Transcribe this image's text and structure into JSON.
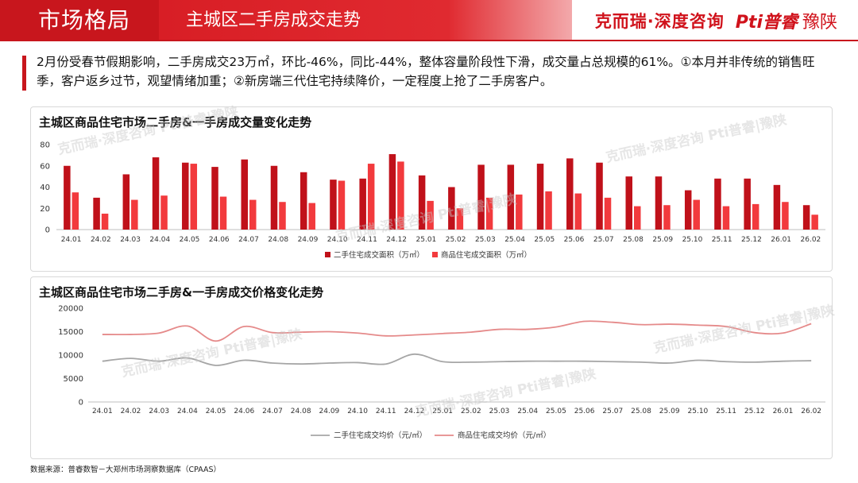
{
  "header": {
    "section_title": "市场格局",
    "page_title": "主城区二手房成交走势",
    "brand_left": "克而瑞·深度咨询",
    "brand_mark": "Pti普睿",
    "brand_right": "豫陕"
  },
  "summary": {
    "text": "2月份受春节假期影响，二手房成交23万㎡，环比-46%，同比-44%，整体容量阶段性下滑，成交量占总规模的61%。①本月并非传统的销售旺季，客户返乡过节，观望情绪加重；②新房端三代住宅持续降价，一定程度上抢了二手房客户。"
  },
  "source": "数据来源：普睿数智－大郑州市场洞察数据库（CPAAS）",
  "colors": {
    "brand_red": "#c8161d",
    "bar_dark": "#c0111a",
    "bar_light": "#f23a3d",
    "line_gray": "#a6a6a6",
    "line_pink": "#e58a8a"
  },
  "chart_data": [
    {
      "type": "bar",
      "title": "主城区商品住宅市场二手房&一手房成交量变化走势",
      "categories": [
        "24.01",
        "24.02",
        "24.03",
        "24.04",
        "24.05",
        "24.06",
        "24.07",
        "24.08",
        "24.09",
        "24.10",
        "24.11",
        "24.12",
        "25.01",
        "25.02",
        "25.03",
        "25.04",
        "25.05",
        "25.06",
        "25.07",
        "25.08",
        "25.09",
        "25.10",
        "25.11",
        "25.12",
        "26.01",
        "26.02"
      ],
      "series": [
        {
          "name": "二手住宅成交面积（万㎡）",
          "values": [
            60,
            30,
            52,
            68,
            63,
            59,
            66,
            60,
            54,
            47,
            48,
            71,
            51,
            40,
            61,
            61,
            62,
            67,
            63,
            50,
            50,
            37,
            48,
            48,
            42,
            23
          ]
        },
        {
          "name": "商品住宅成交面积（万㎡）",
          "values": [
            35,
            15,
            28,
            32,
            62,
            31,
            28,
            26,
            25,
            46,
            62,
            64,
            27,
            20,
            30,
            33,
            36,
            34,
            30,
            22,
            23,
            28,
            22,
            24,
            26,
            14
          ]
        }
      ],
      "ylim": [
        0,
        80
      ],
      "yticks": [
        0,
        20,
        40,
        60,
        80
      ],
      "legend": "bottom-center"
    },
    {
      "type": "line",
      "title": "主城区商品住宅市场二手房&一手房成交价格变化走势",
      "categories": [
        "24.01",
        "24.02",
        "24.03",
        "24.04",
        "24.05",
        "24.06",
        "24.07",
        "24.08",
        "24.09",
        "24.10",
        "24.11",
        "24.12",
        "25.01",
        "25.02",
        "25.03",
        "25.04",
        "25.05",
        "25.06",
        "25.07",
        "25.08",
        "25.09",
        "25.10",
        "25.11",
        "25.12",
        "26.01",
        "26.02"
      ],
      "series": [
        {
          "name": "二手住宅成交均价（元/㎡）",
          "values": [
            8700,
            9300,
            8700,
            9400,
            7800,
            8900,
            8300,
            8100,
            8300,
            8400,
            8100,
            10200,
            8600,
            8500,
            8600,
            8700,
            8700,
            8700,
            8600,
            8500,
            8300,
            8900,
            8600,
            8500,
            8700,
            8800
          ]
        },
        {
          "name": "商品住宅成交均价（元/㎡）",
          "values": [
            14400,
            14400,
            14700,
            16200,
            13000,
            16100,
            14800,
            14900,
            15000,
            14700,
            14100,
            14300,
            14600,
            14900,
            15500,
            15500,
            16000,
            17200,
            17000,
            16500,
            16600,
            16400,
            16100,
            14800,
            14700,
            16700
          ]
        }
      ],
      "ylim": [
        0,
        20000
      ],
      "yticks": [
        0,
        5000,
        10000,
        15000,
        20000
      ],
      "legend": "bottom-center"
    }
  ]
}
